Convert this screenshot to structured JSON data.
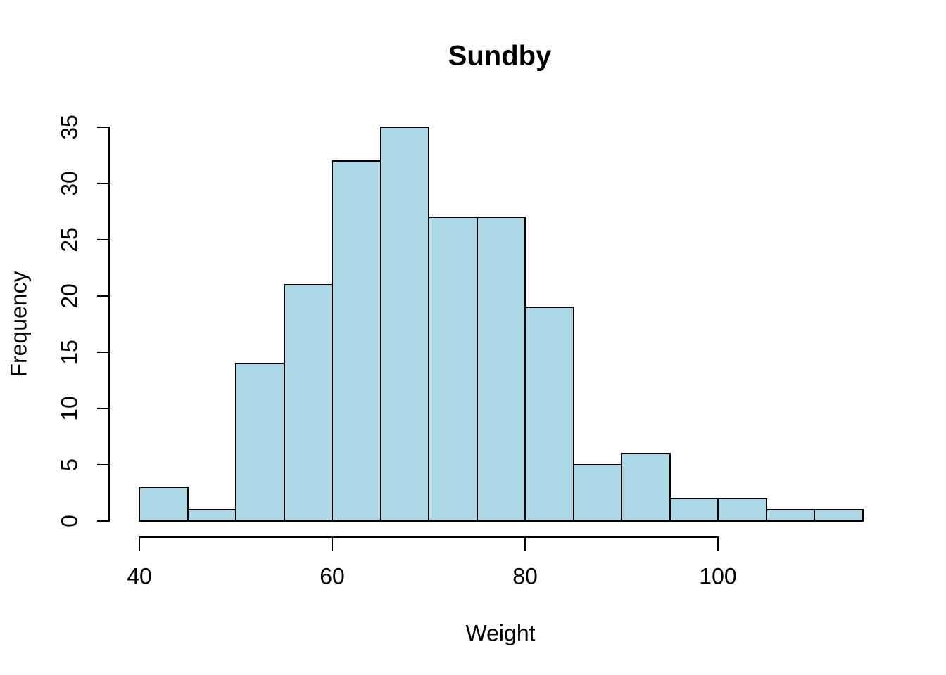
{
  "chart_data": {
    "type": "bar",
    "subtype": "histogram",
    "title": "Sundby",
    "xlabel": "Weight",
    "ylabel": "Frequency",
    "breaks": [
      40,
      45,
      50,
      55,
      60,
      65,
      70,
      75,
      80,
      85,
      90,
      95,
      100,
      105,
      110,
      115
    ],
    "counts": [
      3,
      1,
      14,
      21,
      32,
      35,
      27,
      27,
      19,
      5,
      6,
      2,
      2,
      1,
      1
    ],
    "x_ticks": [
      40,
      60,
      80,
      100
    ],
    "y_ticks": [
      0,
      5,
      10,
      15,
      20,
      25,
      30,
      35
    ],
    "xlim": [
      40,
      115
    ],
    "ylim": [
      0,
      35
    ],
    "bar_fill_color": "#ADD8E6",
    "bar_border_color": "#000000",
    "axis_color": "#000000",
    "background_color": "#FFFFFF",
    "grid": false,
    "legend": "none"
  }
}
